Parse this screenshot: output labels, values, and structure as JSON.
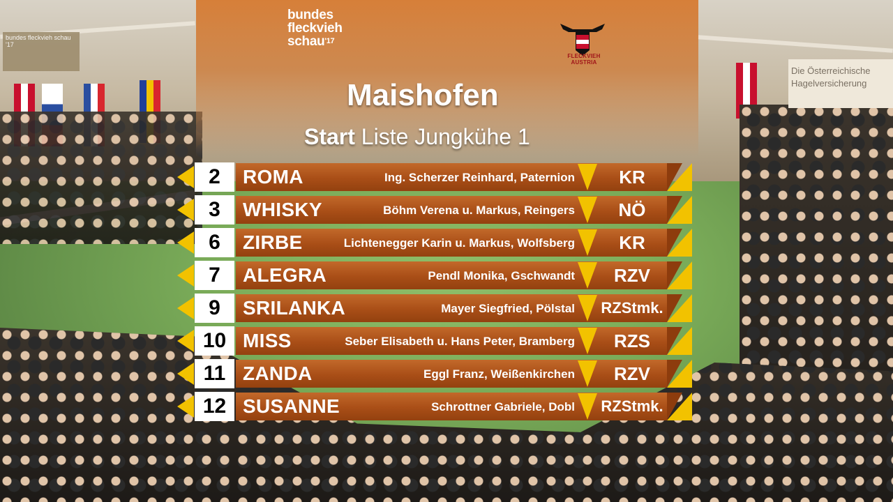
{
  "branding": {
    "event_line1": "bundes",
    "event_line2": "fleckvieh",
    "event_line3": "schau",
    "event_year": "'17",
    "logo_text": "FLECKVIEH AUSTRIA"
  },
  "background": {
    "sign_right_line1": "Die Österreichische",
    "sign_right_line2": "Hagelversicherung",
    "left_banner_text": "bundes fleckvieh schau '17"
  },
  "header": {
    "title": "Maishofen",
    "subtitle_bold": "Start",
    "subtitle_rest": "Liste Jungkühe 1"
  },
  "entries": [
    {
      "number": "2",
      "name": "ROMA",
      "owner": "Ing. Scherzer Reinhard, Paternion",
      "region": "KR"
    },
    {
      "number": "3",
      "name": "WHISKY",
      "owner": "Böhm Verena u. Markus, Reingers",
      "region": "NÖ"
    },
    {
      "number": "6",
      "name": "ZIRBE",
      "owner": "Lichtenegger  Karin u. Markus, Wolfsberg",
      "region": "KR"
    },
    {
      "number": "7",
      "name": "ALEGRA",
      "owner": "Pendl Monika, Gschwandt",
      "region": "RZV"
    },
    {
      "number": "9",
      "name": "SRILANKA",
      "owner": "Mayer Siegfried, Pölstal",
      "region": "RZStmk."
    },
    {
      "number": "10",
      "name": "MISS",
      "owner": "Seber Elisabeth u. Hans Peter, Bramberg",
      "region": "RZS"
    },
    {
      "number": "11",
      "name": "ZANDA",
      "owner": "Eggl Franz, Weißenkirchen",
      "region": "RZV"
    },
    {
      "number": "12",
      "name": "SUSANNE",
      "owner": "Schrottner Gabriele, Dobl",
      "region": "RZStmk."
    }
  ],
  "colors": {
    "accent_yellow": "#f2c200",
    "bar_brown": "#a94e17",
    "panel_orange": "#d6782d",
    "logo_red": "#a0151a"
  }
}
